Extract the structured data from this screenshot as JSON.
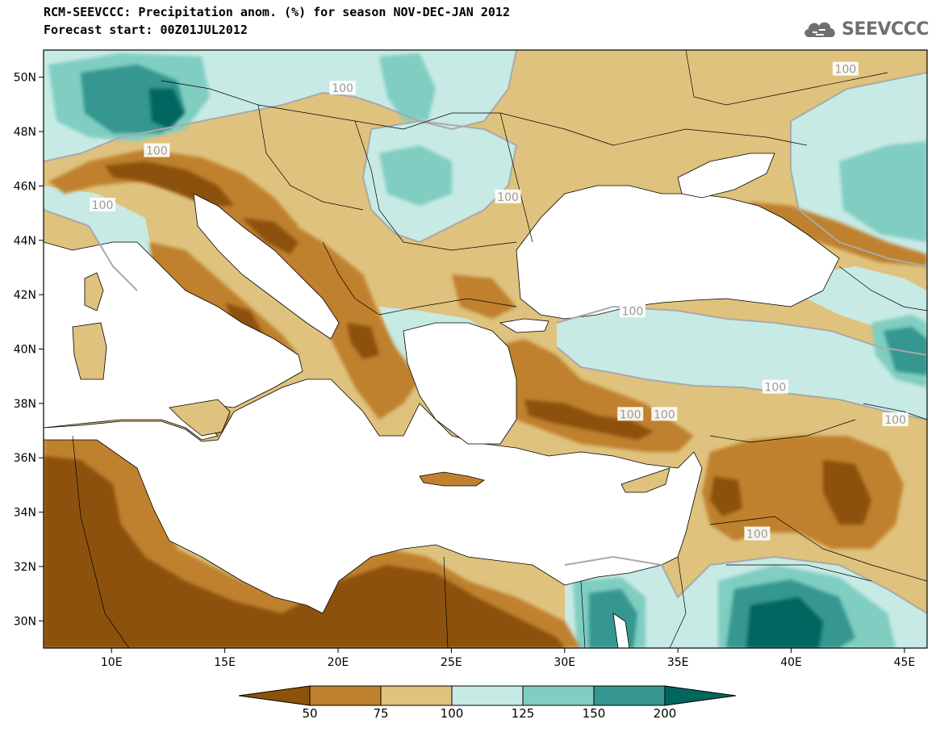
{
  "header": {
    "title_line1": "RCM-SEEVCCC: Precipitation anom. (%) for season NOV-DEC-JAN 2012",
    "title_line2": "Forecast start: 00Z01JUL2012"
  },
  "logo": {
    "text": "SEEVCCC",
    "icon": "cloud-logo-icon"
  },
  "map": {
    "lon_range": [
      7,
      46
    ],
    "lat_range": [
      29,
      51
    ],
    "lat_ticks": [
      {
        "value": 30,
        "label": "30N"
      },
      {
        "value": 32,
        "label": "32N"
      },
      {
        "value": 34,
        "label": "34N"
      },
      {
        "value": 36,
        "label": "36N"
      },
      {
        "value": 38,
        "label": "38N"
      },
      {
        "value": 40,
        "label": "40N"
      },
      {
        "value": 42,
        "label": "42N"
      },
      {
        "value": 44,
        "label": "44N"
      },
      {
        "value": 46,
        "label": "46N"
      },
      {
        "value": 48,
        "label": "48N"
      },
      {
        "value": 50,
        "label": "50N"
      }
    ],
    "lon_ticks": [
      {
        "value": 10,
        "label": "10E"
      },
      {
        "value": 15,
        "label": "15E"
      },
      {
        "value": 20,
        "label": "20E"
      },
      {
        "value": 25,
        "label": "25E"
      },
      {
        "value": 30,
        "label": "30E"
      },
      {
        "value": 35,
        "label": "35E"
      },
      {
        "value": 40,
        "label": "40E"
      },
      {
        "value": 45,
        "label": "45E"
      }
    ],
    "contour_labels": [
      {
        "text": "100",
        "lon": 20.2,
        "lat": 49.6
      },
      {
        "text": "100",
        "lon": 12.0,
        "lat": 47.3
      },
      {
        "text": "100",
        "lon": 9.6,
        "lat": 45.3
      },
      {
        "text": "100",
        "lon": 27.5,
        "lat": 45.6
      },
      {
        "text": "100",
        "lon": 42.4,
        "lat": 50.3
      },
      {
        "text": "100",
        "lon": 33.0,
        "lat": 41.4
      },
      {
        "text": "100",
        "lon": 39.3,
        "lat": 38.6
      },
      {
        "text": "100",
        "lon": 32.9,
        "lat": 37.6
      },
      {
        "text": "100",
        "lon": 34.4,
        "lat": 37.6
      },
      {
        "text": "100",
        "lon": 44.6,
        "lat": 37.4
      },
      {
        "text": "100",
        "lon": 38.5,
        "lat": 33.2
      }
    ]
  },
  "colorbar": {
    "labels": [
      "50",
      "75",
      "100",
      "125",
      "150",
      "200"
    ],
    "colors": {
      "lt50": "#8c510a",
      "b50_75": "#bf812d",
      "b75_100": "#dfc27d",
      "b100_125": "#c7eae5",
      "b125_150": "#80cdc1",
      "b150_200": "#35978f",
      "gt200": "#01665e"
    }
  }
}
